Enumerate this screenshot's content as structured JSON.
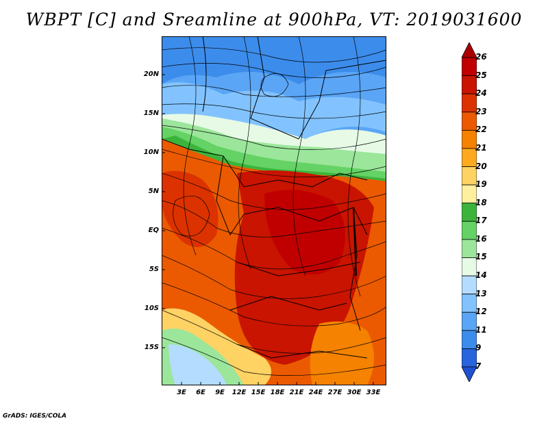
{
  "title": "WBPT [C] and Sreamline at 900hPa, VT: 2019031600",
  "footer": "GrADS: IGES/COLA",
  "map": {
    "lat_labels": [
      "20N",
      "15N",
      "10N",
      "5N",
      "EQ",
      "5S",
      "10S",
      "15S"
    ],
    "lon_labels": [
      "3E",
      "6E",
      "9E",
      "12E",
      "15E",
      "18E",
      "21E",
      "24E",
      "27E",
      "30E",
      "33E"
    ]
  },
  "colorbar": {
    "labels": [
      "26",
      "25",
      "24",
      "23",
      "22",
      "21",
      "20",
      "19",
      "18",
      "17",
      "16",
      "15",
      "14",
      "13",
      "12",
      "11",
      "9",
      "7"
    ],
    "colors": [
      "#c00000",
      "#c81400",
      "#dc3200",
      "#eb5a00",
      "#f58200",
      "#ffaa1e",
      "#ffd264",
      "#fff0a0",
      "#3cb43c",
      "#64d264",
      "#9be69b",
      "#e6fae6",
      "#b4dcff",
      "#82c3ff",
      "#5aa5f5",
      "#3c8ceb",
      "#2864dc"
    ],
    "top_color": "#aa0000",
    "bottom_color": "#1e50d2"
  }
}
